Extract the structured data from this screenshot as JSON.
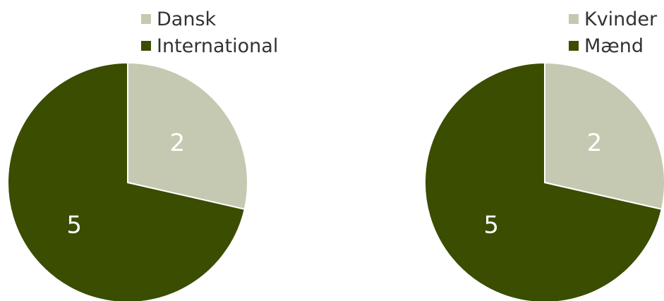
{
  "chart_data": [
    {
      "type": "pie",
      "categories": [
        "Dansk",
        "International"
      ],
      "values": [
        2,
        5
      ],
      "colors": [
        "#c6c9b1",
        "#3a4d00"
      ],
      "legend": "top-right"
    },
    {
      "type": "pie",
      "categories": [
        "Kvinder",
        "Mænd"
      ],
      "values": [
        2,
        5
      ],
      "colors": [
        "#c6c9b1",
        "#3a4d00"
      ],
      "legend": "top-right"
    }
  ]
}
